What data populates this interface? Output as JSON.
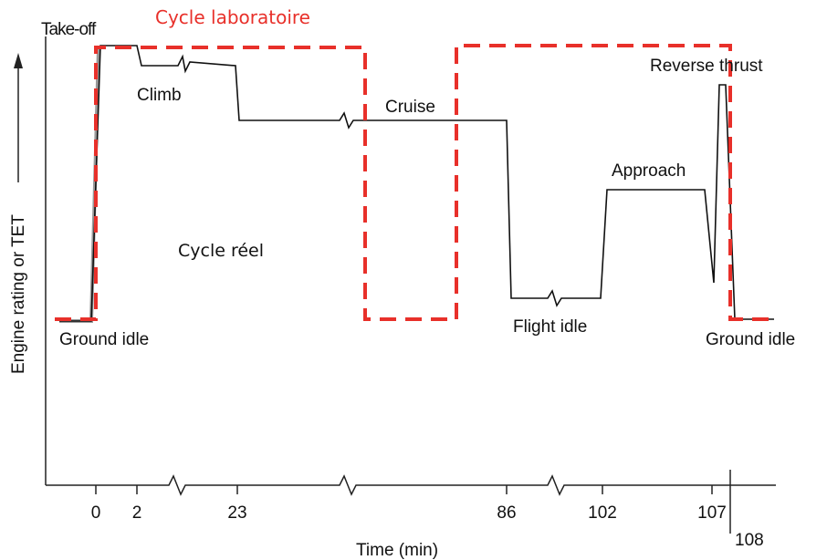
{
  "title": "Cycle laboratoire",
  "y_axis_label": "Engine rating or TET",
  "x_axis_label": "Time (min)",
  "annotations": {
    "takeoff": "Take-off",
    "climb": "Climb",
    "cruise": "Cruise",
    "reverse": "Reverse thrust",
    "approach": "Approach",
    "real_cycle": "Cycle réel",
    "ground_idle_start": "Ground idle",
    "flight_idle": "Flight idle",
    "ground_idle_end": "Ground idle"
  },
  "xticks": [
    0,
    2,
    23,
    86,
    102,
    107,
    108
  ]
}
